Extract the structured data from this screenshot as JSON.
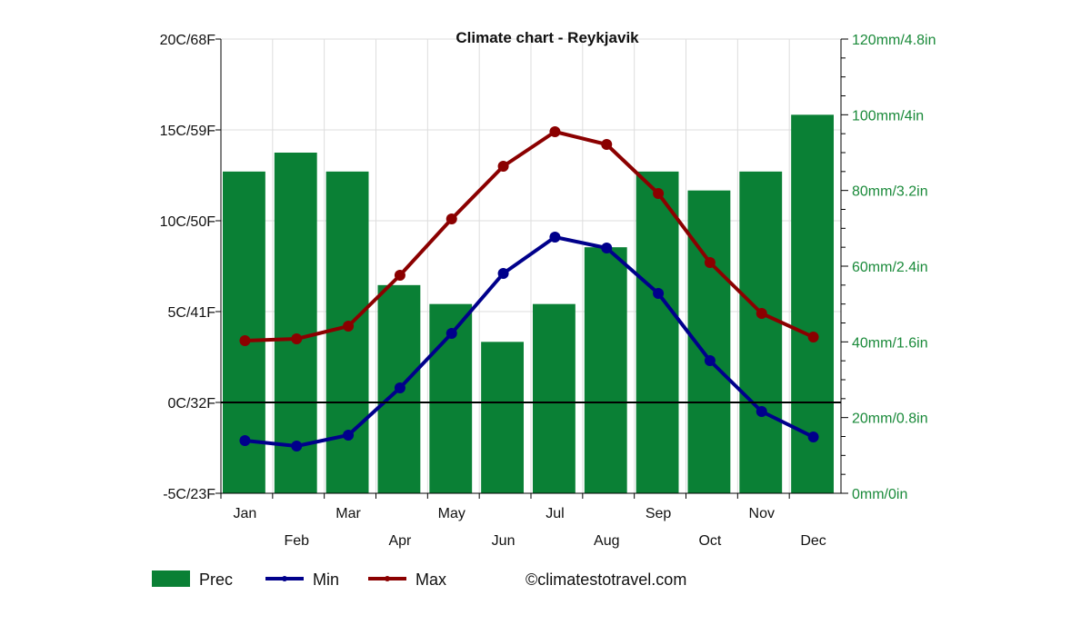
{
  "chart_data": {
    "type": "bar+line",
    "title": "Climate chart - Reykjavik",
    "categories": [
      "Jan",
      "Feb",
      "Mar",
      "Apr",
      "May",
      "Jun",
      "Jul",
      "Aug",
      "Sep",
      "Oct",
      "Nov",
      "Dec"
    ],
    "left_axis": {
      "ylim": [
        -5,
        20
      ],
      "ticks": [
        "-5C/23F",
        "0C/32F",
        "5C/41F",
        "10C/50F",
        "15C/59F",
        "20C/68F"
      ],
      "tick_values": [
        -5,
        0,
        5,
        10,
        15,
        20
      ]
    },
    "right_axis": {
      "ylim": [
        0,
        120
      ],
      "ticks": [
        "0mm/0in",
        "20mm/0.8in",
        "40mm/1.6in",
        "60mm/2.4in",
        "80mm/3.2in",
        "100mm/4in",
        "120mm/4.8in"
      ],
      "tick_values": [
        0,
        20,
        40,
        60,
        80,
        100,
        120
      ],
      "color": "#1a8a3a"
    },
    "series": [
      {
        "name": "Prec",
        "kind": "bar",
        "axis": "right",
        "color": "#0a8035",
        "values": [
          85,
          90,
          85,
          55,
          50,
          40,
          50,
          65,
          85,
          80,
          85,
          100
        ]
      },
      {
        "name": "Min",
        "kind": "line",
        "axis": "left",
        "color": "#00008b",
        "values": [
          -2.1,
          -2.4,
          -1.8,
          0.8,
          3.8,
          7.1,
          9.1,
          8.5,
          6.0,
          2.3,
          -0.5,
          -1.9
        ]
      },
      {
        "name": "Max",
        "kind": "line",
        "axis": "left",
        "color": "#8b0000",
        "values": [
          3.4,
          3.5,
          4.2,
          7.0,
          10.1,
          13.0,
          14.9,
          14.2,
          11.5,
          7.7,
          4.9,
          3.6
        ]
      }
    ],
    "grid": true,
    "legend_placement": "bottom",
    "credit": "©climatestotravel.com"
  }
}
